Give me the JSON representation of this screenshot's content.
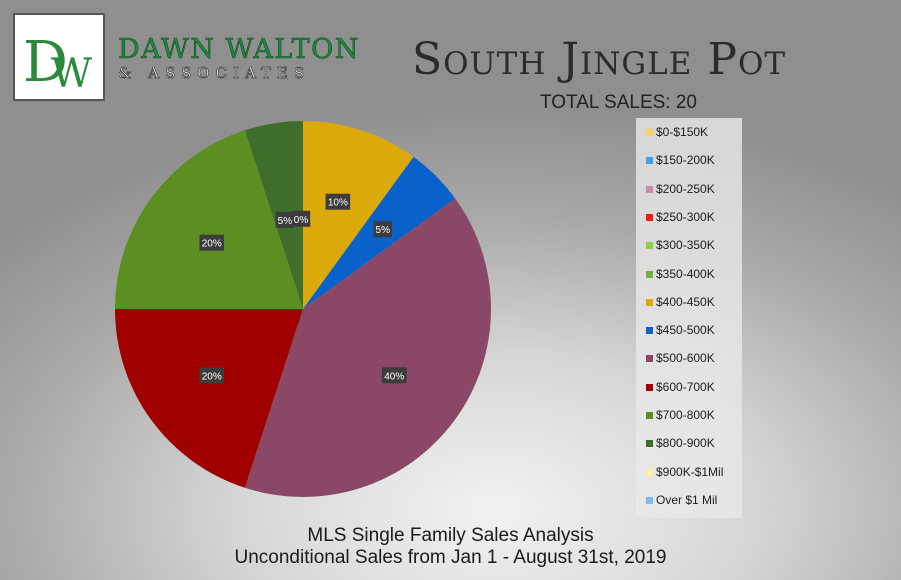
{
  "logo": {
    "monogram": "DW",
    "brand": "DAWN WALTON",
    "subbrand": "& ASSOCIATES"
  },
  "title": "South Jingle Pot",
  "total_sales": "TOTAL SALES: 20",
  "footer": {
    "line1": "MLS Single Family Sales Analysis",
    "line2": "Unconditional Sales from Jan 1 - August 31st, 2019"
  },
  "chart_data": {
    "type": "pie",
    "categories": [
      "$0-$150K",
      "$150-200K",
      "$200-250K",
      "$250-300K",
      "$300-350K",
      "$350-400K",
      "$400-450K",
      "$450-500K",
      "$500-600K",
      "$600-700K",
      "$700-800K",
      "$800-900K",
      "$900K-$1Mil",
      "Over $1 Mil"
    ],
    "values": [
      0,
      0,
      0,
      0,
      0,
      0,
      10,
      5,
      40,
      20,
      20,
      5,
      0,
      0
    ],
    "labels": [
      "",
      "",
      "",
      "",
      "",
      "",
      "10%",
      "5%",
      "40%",
      "20%",
      "20%",
      "5%",
      "0%",
      ""
    ],
    "colors": [
      "#fbd35a",
      "#3fa0ee",
      "#c48fa6",
      "#ee1c1c",
      "#8ed24a",
      "#6fb24a",
      "#dca90a",
      "#0962c9",
      "#8a4866",
      "#a00000",
      "#5c8e22",
      "#3f6d2c",
      "#fff0a0",
      "#7fb8f2"
    ],
    "legend_position": "right"
  }
}
